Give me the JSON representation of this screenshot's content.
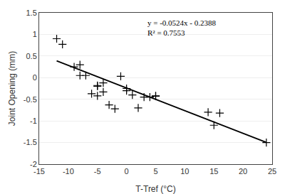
{
  "chart_data": {
    "type": "scatter",
    "xlabel": "T-Tref (°C)",
    "ylabel": "Joint Opening (mm)",
    "series": [
      {
        "type": "scatter",
        "marker": "+",
        "color": "black",
        "x": [
          -12,
          -11,
          -9,
          -8,
          -8,
          -7,
          -6,
          -5,
          -5,
          -5,
          -4,
          -4,
          -3,
          -2,
          -1,
          0,
          0,
          1,
          2,
          3,
          4,
          5,
          5,
          14,
          15,
          16,
          24
        ],
        "values": [
          0.9,
          0.77,
          0.25,
          0.3,
          0.05,
          0.05,
          -0.37,
          -0.18,
          -0.42,
          -0.2,
          -0.33,
          -0.12,
          -0.63,
          -0.72,
          0.03,
          -0.25,
          -0.3,
          -0.4,
          -0.7,
          -0.45,
          -0.45,
          -0.43,
          -0.42,
          -0.8,
          -1.1,
          -0.82,
          -1.5
        ]
      },
      {
        "type": "line",
        "line_style": "solid",
        "color": "black",
        "x": [
          -12,
          24
        ],
        "values": [
          0.39,
          -1.4964
        ]
      }
    ],
    "xlim": [
      -15,
      25
    ],
    "ylim": [
      -2,
      1.5
    ],
    "xticks": [
      -15,
      -10,
      -5,
      0,
      5,
      10,
      15,
      20,
      25
    ],
    "yticks": [
      -2,
      -1.5,
      -1,
      -0.5,
      0,
      0.5,
      1,
      1.5
    ],
    "grid": "y",
    "annotations": [
      "y = -0.0524x - 0.2388",
      "R² = 0.7553"
    ]
  }
}
